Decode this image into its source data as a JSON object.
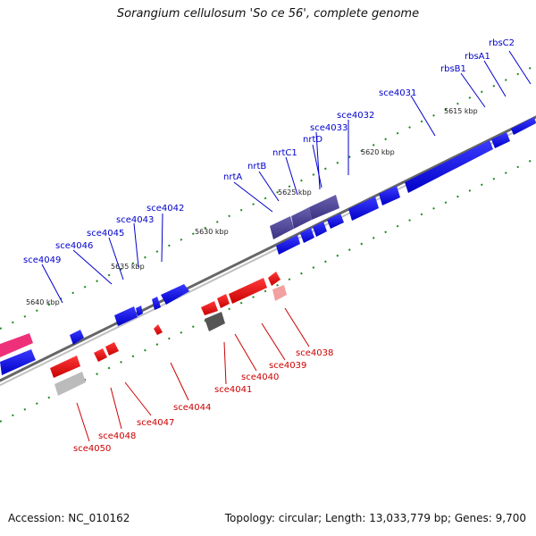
{
  "title": "Sorangium cellulosum 'So ce 56', complete genome",
  "footer": {
    "accession": "Accession: NC_010162",
    "topology": "Topology: circular; Length: 13,033,779 bp; Genes: 9,700"
  },
  "colors": {
    "forward_gene": "#0000ee",
    "forward_operon": "#4a3f8f",
    "reverse_gene": "#ee0000",
    "reverse_pink": "#f2a0a0",
    "reverse_dark": "#555555",
    "reverse_gray": "#bbbbbb",
    "magenta": "#ee2f7a",
    "backbone": "#777777",
    "tick": "#1a8a1a"
  },
  "kbp_markers": [
    {
      "text": "5615 kbp"
    },
    {
      "text": "5620 kbp"
    },
    {
      "text": "5625 kbp"
    },
    {
      "text": "5630 kbp"
    },
    {
      "text": "5635 kbp"
    },
    {
      "text": "5640 kbp"
    }
  ],
  "forward_labels": [
    "rbsC2",
    "rbsA1",
    "rbsB1",
    "sce4031",
    "sce4032",
    "sce4033",
    "nrtD",
    "nrtC1",
    "nrtB",
    "nrtA",
    "sce4042",
    "sce4043",
    "sce4045",
    "sce4046",
    "sce4049"
  ],
  "reverse_labels": [
    "sce4038",
    "sce4039",
    "sce4040",
    "sce4041",
    "sce4044",
    "sce4047",
    "sce4048",
    "sce4050"
  ]
}
